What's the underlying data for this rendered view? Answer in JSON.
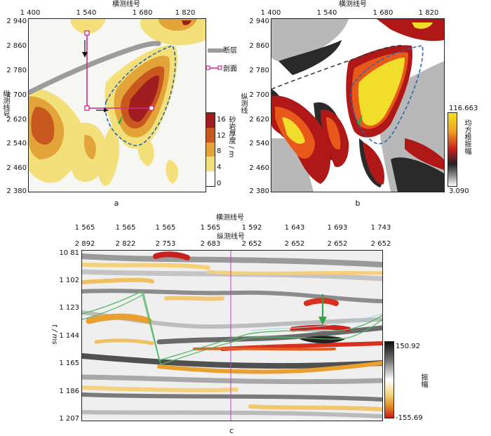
{
  "panel_a": {
    "label": "a",
    "top_axis_title": "横测线号",
    "x_ticks": [
      "1 400",
      "1 540",
      "1 680",
      "1 820"
    ],
    "y_axis_title": "纵测线号",
    "y_ticks": [
      "2 940",
      "2 860",
      "2 780",
      "2 700",
      "2 620",
      "2 540",
      "2 460",
      "2 380"
    ],
    "legend": {
      "fault": "断层",
      "section": "剖面"
    },
    "colorbar_title": "砂岩厚度 / m",
    "colorbar_ticks": [
      "16",
      "12",
      "8",
      "4",
      "0"
    ],
    "colorbar_colors": [
      "#a01d1f",
      "#c8581e",
      "#e3a43a",
      "#f3e07a",
      "#ffffff"
    ]
  },
  "panel_b": {
    "label": "b",
    "top_axis_title": "横测线号",
    "x_ticks": [
      "1 400",
      "1 540",
      "1 680",
      "1 820"
    ],
    "y_axis_title": "纵测线",
    "y_ticks": [
      "2 940",
      "2 860",
      "2 780",
      "2 700",
      "2 620",
      "2 540",
      "2 460",
      "2 380"
    ],
    "colorbar_title": "均方根振幅",
    "colorbar_max": "116.663",
    "colorbar_min": "3.090"
  },
  "panel_c": {
    "label": "c",
    "top_axis_title_1": "横测线号",
    "top_axis_title_2": "纵测线号",
    "inline_ticks": [
      "1 565",
      "1 565",
      "1 565",
      "1 565",
      "1 592",
      "1 643",
      "1 693",
      "1 743"
    ],
    "crossline_ticks": [
      "2 892",
      "2 822",
      "2 753",
      "2 683",
      "2 652",
      "2 652",
      "2 652",
      "2 652"
    ],
    "y_axis_label": "t / ms",
    "y_ticks": [
      "10 81",
      "1 102",
      "1 123",
      "1 144",
      "1 165",
      "1 186",
      "1 207"
    ],
    "colorbar_title": "振幅",
    "colorbar_max": "150.92",
    "colorbar_min": "-155.69"
  },
  "colors": {
    "fault": "#9c9c9c",
    "section": "#d02a8a",
    "outline": "#2a64b0",
    "arrow": "#2aa84a"
  }
}
